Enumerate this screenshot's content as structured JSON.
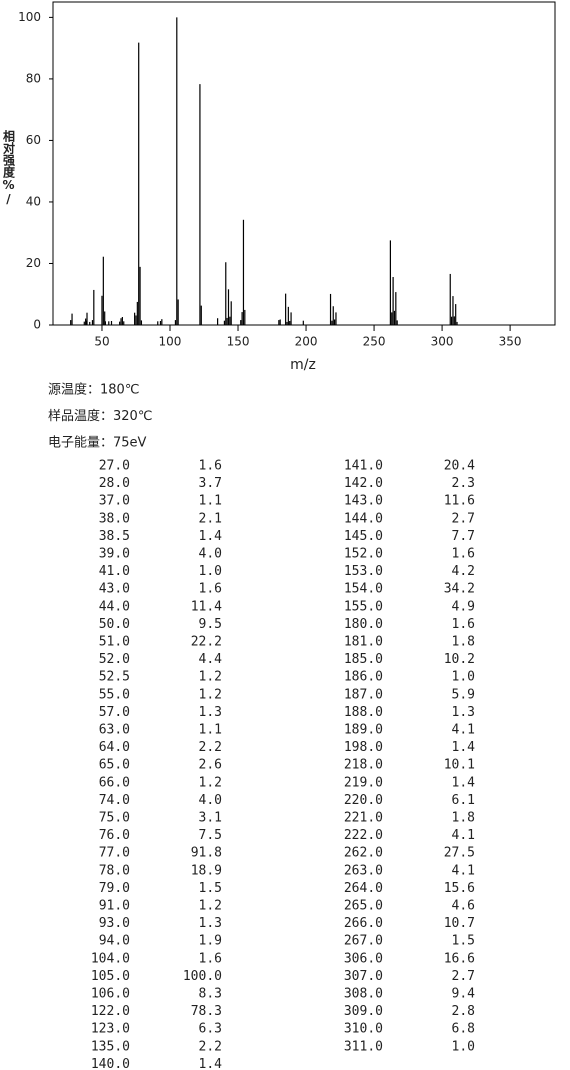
{
  "chart_data": {
    "type": "stem",
    "color": "#000000",
    "y_label": "相对强度%/",
    "x_label": "m/z",
    "xlim": [
      14,
      383
    ],
    "xticks": [
      50,
      100,
      150,
      200,
      250,
      300,
      350
    ],
    "ylim": [
      0,
      105
    ],
    "yticks": [
      0,
      20,
      40,
      60,
      80,
      100
    ],
    "x": [
      27,
      28,
      37,
      38,
      38.5,
      39,
      41,
      43,
      44,
      50,
      51,
      52,
      52.5,
      55,
      57,
      63,
      64,
      65,
      66,
      74,
      75,
      76,
      77,
      78,
      79,
      91,
      93,
      94,
      104,
      105,
      106,
      122,
      123,
      135,
      140,
      141,
      142,
      143,
      144,
      145,
      152,
      153,
      154,
      155,
      180,
      181,
      185,
      186,
      187,
      188,
      189,
      198,
      218,
      219,
      220,
      221,
      222,
      262,
      263,
      264,
      265,
      266,
      267,
      306,
      307,
      308,
      309,
      310,
      311
    ],
    "x_labels": [
      "27.0",
      "28.0",
      "37.0",
      "38.0",
      "38.5",
      "39.0",
      "41.0",
      "43.0",
      "44.0",
      "50.0",
      "51.0",
      "52.0",
      "52.5",
      "55.0",
      "57.0",
      "63.0",
      "64.0",
      "65.0",
      "66.0",
      "74.0",
      "75.0",
      "76.0",
      "77.0",
      "78.0",
      "79.0",
      "91.0",
      "93.0",
      "94.0",
      "104.0",
      "105.0",
      "106.0",
      "122.0",
      "123.0",
      "135.0",
      "140.0",
      "141.0",
      "142.0",
      "143.0",
      "144.0",
      "145.0",
      "152.0",
      "153.0",
      "154.0",
      "155.0",
      "180.0",
      "181.0",
      "185.0",
      "186.0",
      "187.0",
      "188.0",
      "189.0",
      "198.0",
      "218.0",
      "219.0",
      "220.0",
      "221.0",
      "222.0",
      "262.0",
      "263.0",
      "264.0",
      "265.0",
      "266.0",
      "267.0",
      "306.0",
      "307.0",
      "308.0",
      "309.0",
      "310.0",
      "311.0"
    ],
    "values": [
      1.6,
      3.7,
      1.1,
      2.1,
      1.4,
      4.0,
      1.0,
      1.6,
      11.4,
      9.5,
      22.2,
      4.4,
      1.2,
      1.2,
      1.3,
      1.1,
      2.2,
      2.6,
      1.2,
      4.0,
      3.1,
      7.5,
      91.8,
      18.9,
      1.5,
      1.2,
      1.3,
      1.9,
      1.6,
      100.0,
      8.3,
      78.3,
      6.3,
      2.2,
      1.4,
      20.4,
      2.3,
      11.6,
      2.7,
      7.7,
      1.6,
      4.2,
      34.2,
      4.9,
      1.6,
      1.8,
      10.2,
      1.0,
      5.9,
      1.3,
      4.1,
      1.4,
      10.1,
      1.4,
      6.1,
      1.8,
      4.1,
      27.5,
      4.1,
      15.6,
      4.6,
      10.7,
      1.5,
      16.6,
      2.7,
      9.4,
      2.8,
      6.8,
      1.0
    ],
    "value_labels": [
      "1.6",
      "3.7",
      "1.1",
      "2.1",
      "1.4",
      "4.0",
      "1.0",
      "1.6",
      "11.4",
      "9.5",
      "22.2",
      "4.4",
      "1.2",
      "1.2",
      "1.3",
      "1.1",
      "2.2",
      "2.6",
      "1.2",
      "4.0",
      "3.1",
      "7.5",
      "91.8",
      "18.9",
      "1.5",
      "1.2",
      "1.3",
      "1.9",
      "1.6",
      "100.0",
      "8.3",
      "78.3",
      "6.3",
      "2.2",
      "1.4",
      "20.4",
      "2.3",
      "11.6",
      "2.7",
      "7.7",
      "1.6",
      "4.2",
      "34.2",
      "4.9",
      "1.6",
      "1.8",
      "10.2",
      "1.0",
      "5.9",
      "1.3",
      "4.1",
      "1.4",
      "10.1",
      "1.4",
      "6.1",
      "1.8",
      "4.1",
      "27.5",
      "4.1",
      "15.6",
      "4.6",
      "10.7",
      "1.5",
      "16.6",
      "2.7",
      "9.4",
      "2.8",
      "6.8",
      "1.0"
    ]
  },
  "info": [
    "源温度：180℃",
    "样品温度：320℃",
    "电子能量：75eV"
  ]
}
